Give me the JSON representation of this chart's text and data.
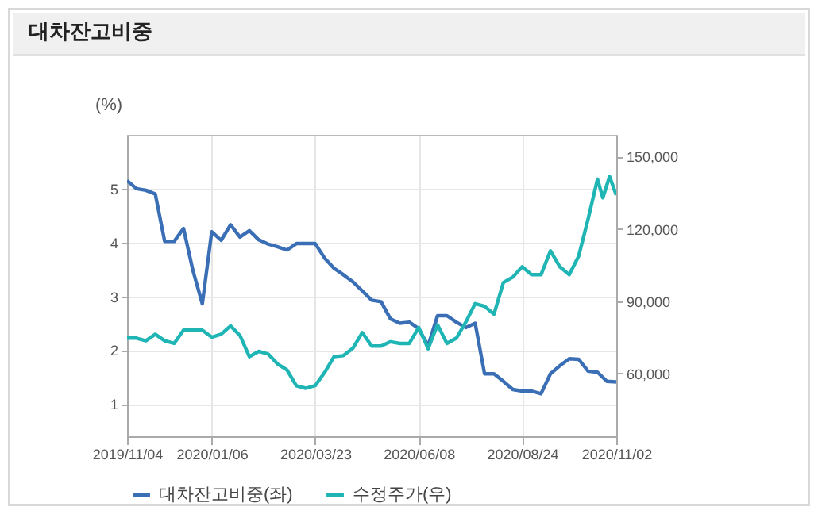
{
  "chart_data": {
    "type": "line",
    "title": "대차잔고비중",
    "ylabel": "(%)",
    "x": [
      "2019-11-04",
      "2019-11-11",
      "2019-11-18",
      "2019-11-25",
      "2019-12-02",
      "2019-12-09",
      "2019-12-16",
      "2019-12-23",
      "2019-12-30",
      "2020-01-06",
      "2020-01-13",
      "2020-01-20",
      "2020-01-27",
      "2020-02-03",
      "2020-02-10",
      "2020-02-17",
      "2020-02-24",
      "2020-03-02",
      "2020-03-09",
      "2020-03-16",
      "2020-03-23",
      "2020-03-30",
      "2020-04-06",
      "2020-04-13",
      "2020-04-20",
      "2020-04-27",
      "2020-05-04",
      "2020-05-11",
      "2020-05-18",
      "2020-05-25",
      "2020-06-01",
      "2020-06-08",
      "2020-06-15",
      "2020-06-22",
      "2020-06-29",
      "2020-07-06",
      "2020-07-13",
      "2020-07-20",
      "2020-07-27",
      "2020-08-03",
      "2020-08-10",
      "2020-08-17",
      "2020-08-24",
      "2020-08-31",
      "2020-09-07",
      "2020-09-14",
      "2020-09-21",
      "2020-09-28",
      "2020-10-05",
      "2020-10-12",
      "2020-10-19",
      "2020-10-26",
      "2020-11-02"
    ],
    "series": [
      {
        "name": "대차잔고비중(좌)",
        "color": "#3a6fb5",
        "values": [
          5.15,
          5.0,
          4.97,
          4.9,
          4.02,
          4.02,
          4.26,
          3.48,
          2.86,
          4.2,
          4.04,
          4.33,
          4.1,
          4.22,
          4.05,
          3.97,
          3.92,
          3.86,
          3.98,
          3.98,
          3.98,
          3.71,
          3.52,
          3.4,
          3.27,
          3.1,
          2.93,
          2.9,
          2.58,
          2.5,
          2.52,
          2.4,
          2.08,
          2.64,
          2.64,
          2.52,
          2.42,
          2.5,
          1.56,
          1.56,
          1.42,
          1.27,
          1.24,
          1.24,
          1.19,
          1.56,
          1.71,
          1.84,
          1.83,
          1.61,
          1.59,
          1.42,
          1.41
        ]
      },
      {
        "name": "수정주가(우)",
        "color": "#20b5b5",
        "axis": "y2",
        "x": [
          "2019-11-04",
          "2019-11-11",
          "2019-11-18",
          "2019-11-25",
          "2019-12-02",
          "2019-12-09",
          "2019-12-16",
          "2019-12-23",
          "2019-12-30",
          "2020-01-06",
          "2020-01-13",
          "2020-01-20",
          "2020-01-27",
          "2020-02-03",
          "2020-02-10",
          "2020-02-17",
          "2020-02-24",
          "2020-03-02",
          "2020-03-09",
          "2020-03-16",
          "2020-03-23",
          "2020-03-30",
          "2020-04-06",
          "2020-04-13",
          "2020-04-20",
          "2020-04-27",
          "2020-05-04",
          "2020-05-11",
          "2020-05-18",
          "2020-05-25",
          "2020-06-01",
          "2020-06-08",
          "2020-06-15",
          "2020-06-22",
          "2020-06-29",
          "2020-07-06",
          "2020-07-13",
          "2020-07-20",
          "2020-07-27",
          "2020-08-03",
          "2020-08-10",
          "2020-08-17",
          "2020-08-24",
          "2020-08-31",
          "2020-09-07",
          "2020-09-14",
          "2020-09-21",
          "2020-09-28",
          "2020-10-05",
          "2020-10-12",
          "2020-10-19",
          "2020-10-23",
          "2020-10-28",
          "2020-11-02"
        ],
        "values": [
          74700,
          74700,
          73600,
          76300,
          73600,
          72500,
          78000,
          78000,
          78000,
          75100,
          76300,
          79750,
          75800,
          67000,
          69200,
          68100,
          64000,
          61500,
          54900,
          53900,
          55000,
          60450,
          67000,
          67450,
          70500,
          77000,
          71400,
          71400,
          73200,
          72500,
          72500,
          79100,
          70300,
          80200,
          72500,
          74700,
          81300,
          89000,
          87900,
          84600,
          97800,
          100000,
          104300,
          101000,
          101000,
          110900,
          104300,
          101000,
          108700,
          124000,
          140600,
          132900,
          141700,
          134000
        ]
      }
    ],
    "xlim": [
      "2019-11-04",
      "2020-11-02"
    ],
    "xticks": [
      {
        "value": "2019-11-04",
        "label": "2019/11/04"
      },
      {
        "value": "2020-01-06",
        "label": "2020/01/06"
      },
      {
        "value": "2020-03-23",
        "label": "2020/03/23"
      },
      {
        "value": "2020-06-08",
        "label": "2020/06/08"
      },
      {
        "value": "2020-08-24",
        "label": "2020/08/24"
      },
      {
        "value": "2020-11-02",
        "label": "2020/11/02"
      }
    ],
    "ylim": [
      0.4,
      6
    ],
    "yticks": [
      1,
      2,
      3,
      4,
      5
    ],
    "y2lim": [
      34000,
      159000
    ],
    "y2ticks": [
      {
        "value": 60000,
        "label": "60,000"
      },
      {
        "value": 90000,
        "label": "90,000"
      },
      {
        "value": 120000,
        "label": "120,000"
      },
      {
        "value": 150000,
        "label": "150,000"
      }
    ],
    "grid": true,
    "legend": "bottom"
  }
}
